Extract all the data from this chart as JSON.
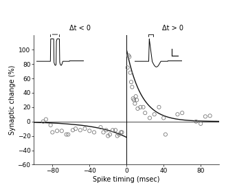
{
  "title_left": "Δt < 0",
  "title_right": "Δt > 0",
  "xlabel": "Spike timing (msec)",
  "ylabel": "Synaptic change (%)",
  "xlim": [
    -100,
    100
  ],
  "ylim": [
    -60,
    120
  ],
  "yticks": [
    -60,
    -40,
    -20,
    0,
    20,
    40,
    60,
    80,
    100
  ],
  "xticks": [
    -80,
    -40,
    0,
    40,
    80
  ],
  "background_color": "#ffffff",
  "scatter_color": "none",
  "scatter_edgecolor": "#777777",
  "curve_color": "#111111",
  "tau_plus": 16,
  "tau_minus": 34,
  "A_plus": 100,
  "A_minus": 22,
  "data_points_positive": [
    [
      1,
      75
    ],
    [
      2,
      92
    ],
    [
      3,
      90
    ],
    [
      4,
      68
    ],
    [
      5,
      55
    ],
    [
      6,
      48
    ],
    [
      7,
      32
    ],
    [
      8,
      30
    ],
    [
      9,
      25
    ],
    [
      10,
      35
    ],
    [
      11,
      30
    ],
    [
      12,
      18
    ],
    [
      15,
      20
    ],
    [
      18,
      20
    ],
    [
      20,
      12
    ],
    [
      25,
      5
    ],
    [
      30,
      10
    ],
    [
      35,
      20
    ],
    [
      40,
      5
    ],
    [
      42,
      -18
    ],
    [
      55,
      10
    ],
    [
      60,
      12
    ],
    [
      75,
      0
    ],
    [
      80,
      -3
    ],
    [
      85,
      7
    ],
    [
      90,
      8
    ]
  ],
  "data_points_negative": [
    [
      -5,
      -15
    ],
    [
      -6,
      -15
    ],
    [
      -8,
      -18
    ],
    [
      -10,
      -20
    ],
    [
      -12,
      -12
    ],
    [
      -15,
      -12
    ],
    [
      -18,
      -18
    ],
    [
      -20,
      -20
    ],
    [
      -22,
      -12
    ],
    [
      -25,
      -15
    ],
    [
      -28,
      -8
    ],
    [
      -35,
      -15
    ],
    [
      -40,
      -13
    ],
    [
      -45,
      -10
    ],
    [
      -50,
      -12
    ],
    [
      -55,
      -10
    ],
    [
      -58,
      -12
    ],
    [
      -63,
      -18
    ],
    [
      -65,
      -18
    ],
    [
      -70,
      -13
    ],
    [
      -75,
      -13
    ],
    [
      -80,
      -15
    ],
    [
      -82,
      -5
    ],
    [
      -87,
      3
    ],
    [
      -90,
      0
    ]
  ]
}
